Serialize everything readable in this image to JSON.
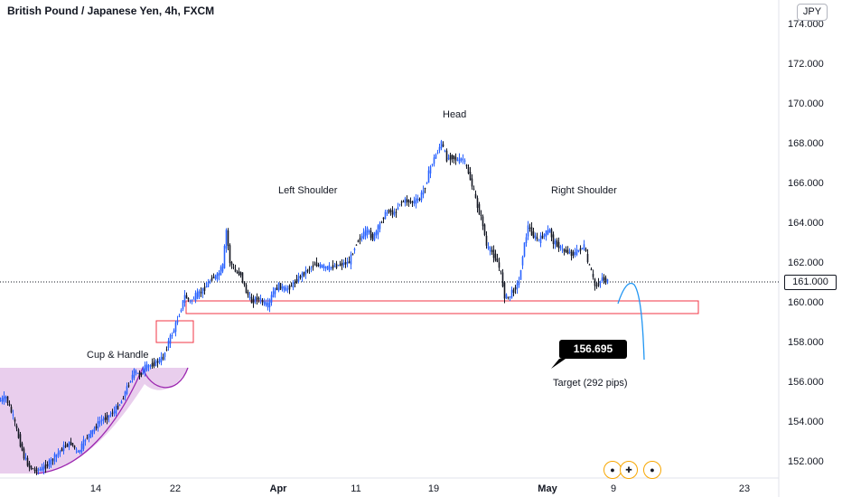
{
  "header": {
    "title": "British Pound / Japanese Yen, 4h, FXCM",
    "currency": "JPY"
  },
  "annotations": {
    "head": "Head",
    "left_shoulder": "Left Shoulder",
    "right_shoulder": "Right Shoulder",
    "cup_handle": "Cup & Handle",
    "target_value": "156.695",
    "target_text": "Target (292 pips)"
  },
  "current_price": "161.000",
  "colors": {
    "up": "#2962ff",
    "down": "#131722",
    "zone": "#f23645",
    "cup_fill": "#e1bee7",
    "cup_line": "#9c27b0",
    "projection": "#2196f3"
  },
  "chart_data": {
    "type": "candlestick",
    "title": "British Pound / Japanese Yen, 4h, FXCM",
    "y_axis": {
      "ticks": [
        "152.000",
        "154.000",
        "156.000",
        "158.000",
        "160.000",
        "162.000",
        "164.000",
        "166.000",
        "168.000",
        "170.000",
        "172.000",
        "174.000"
      ],
      "ylim": [
        151.2,
        175.0
      ],
      "position": "right"
    },
    "x_axis": {
      "ticks": [
        "14",
        "22",
        "Apr",
        "11",
        "19",
        "May",
        "9",
        "23"
      ]
    },
    "series_path": [
      [
        0,
        155.0
      ],
      [
        8,
        155.2
      ],
      [
        16,
        154.2
      ],
      [
        22,
        153.2
      ],
      [
        28,
        152.2
      ],
      [
        34,
        151.7
      ],
      [
        40,
        151.5
      ],
      [
        48,
        151.6
      ],
      [
        56,
        151.9
      ],
      [
        64,
        152.3
      ],
      [
        72,
        152.7
      ],
      [
        80,
        152.9
      ],
      [
        88,
        152.4
      ],
      [
        96,
        153.1
      ],
      [
        104,
        153.5
      ],
      [
        112,
        154.0
      ],
      [
        120,
        154.2
      ],
      [
        128,
        154.5
      ],
      [
        136,
        155.0
      ],
      [
        144,
        155.9
      ],
      [
        150,
        156.5
      ],
      [
        156,
        156.3
      ],
      [
        162,
        156.7
      ],
      [
        168,
        156.8
      ],
      [
        176,
        157.0
      ],
      [
        182,
        157.2
      ],
      [
        188,
        158.0
      ],
      [
        194,
        158.6
      ],
      [
        200,
        159.4
      ],
      [
        206,
        160.3
      ],
      [
        212,
        160.0
      ],
      [
        218,
        160.3
      ],
      [
        224,
        160.5
      ],
      [
        230,
        160.8
      ],
      [
        236,
        161.2
      ],
      [
        242,
        161.3
      ],
      [
        248,
        161.8
      ],
      [
        252,
        163.6
      ],
      [
        256,
        162.0
      ],
      [
        262,
        161.5
      ],
      [
        268,
        161.4
      ],
      [
        274,
        160.5
      ],
      [
        280,
        160.0
      ],
      [
        286,
        160.2
      ],
      [
        292,
        160.0
      ],
      [
        298,
        159.8
      ],
      [
        304,
        160.5
      ],
      [
        310,
        160.8
      ],
      [
        318,
        160.6
      ],
      [
        326,
        160.9
      ],
      [
        334,
        161.3
      ],
      [
        342,
        161.6
      ],
      [
        350,
        161.9
      ],
      [
        356,
        161.8
      ],
      [
        364,
        161.7
      ],
      [
        372,
        161.8
      ],
      [
        380,
        161.9
      ],
      [
        388,
        162.0
      ],
      [
        396,
        163.0
      ],
      [
        402,
        163.3
      ],
      [
        408,
        163.6
      ],
      [
        414,
        163.2
      ],
      [
        420,
        163.7
      ],
      [
        426,
        164.3
      ],
      [
        432,
        164.6
      ],
      [
        438,
        164.4
      ],
      [
        444,
        165.0
      ],
      [
        450,
        165.1
      ],
      [
        458,
        165.0
      ],
      [
        466,
        165.2
      ],
      [
        472,
        165.8
      ],
      [
        478,
        166.8
      ],
      [
        484,
        167.4
      ],
      [
        490,
        168.0
      ],
      [
        496,
        167.2
      ],
      [
        502,
        167.3
      ],
      [
        508,
        167.1
      ],
      [
        514,
        167.2
      ],
      [
        520,
        166.5
      ],
      [
        526,
        165.5
      ],
      [
        530,
        164.8
      ],
      [
        536,
        163.9
      ],
      [
        540,
        162.8
      ],
      [
        546,
        162.5
      ],
      [
        552,
        162.0
      ],
      [
        556,
        161.4
      ],
      [
        560,
        160.3
      ],
      [
        564,
        160.2
      ],
      [
        570,
        160.6
      ],
      [
        576,
        161.0
      ],
      [
        580,
        162.4
      ],
      [
        586,
        163.8
      ],
      [
        592,
        163.3
      ],
      [
        598,
        163.1
      ],
      [
        604,
        163.4
      ],
      [
        610,
        163.6
      ],
      [
        614,
        163.0
      ],
      [
        618,
        162.9
      ],
      [
        624,
        162.6
      ],
      [
        630,
        162.5
      ],
      [
        636,
        162.4
      ],
      [
        642,
        162.6
      ],
      [
        648,
        162.8
      ],
      [
        652,
        162.0
      ],
      [
        656,
        161.5
      ],
      [
        660,
        160.8
      ],
      [
        664,
        160.9
      ],
      [
        668,
        161.2
      ],
      [
        674,
        161.0
      ]
    ]
  }
}
